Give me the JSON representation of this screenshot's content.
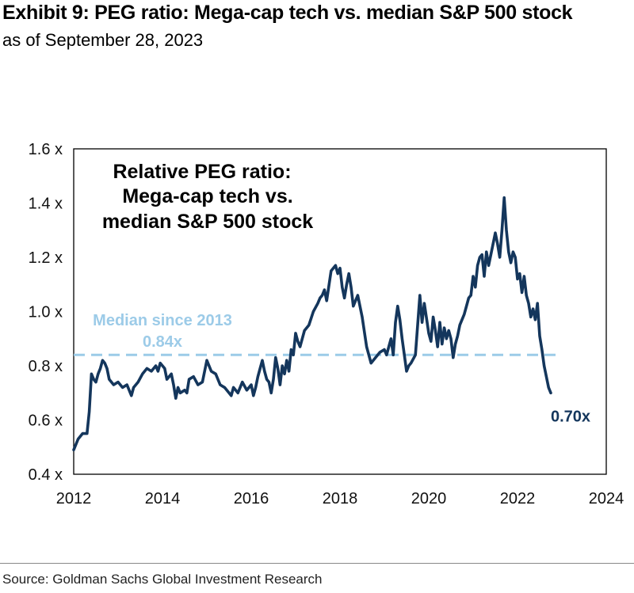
{
  "header": {
    "title": "Exhibit 9: PEG ratio: Mega-cap tech vs. median S&P 500 stock",
    "subtitle": "as of September 28, 2023"
  },
  "footer": {
    "source": "Source: Goldman Sachs Global Investment Research"
  },
  "colors": {
    "series": "#14365c",
    "median": "#9ccbe8",
    "frame": "#000000"
  },
  "chart_data": {
    "type": "line",
    "title_lines": [
      "Relative PEG ratio:",
      "Mega-cap tech vs.",
      "median S&P 500 stock"
    ],
    "xlabel": "",
    "ylabel": "",
    "xlim": [
      2012,
      2024
    ],
    "ylim": [
      0.4,
      1.6
    ],
    "x_ticks": [
      2012,
      2014,
      2016,
      2018,
      2020,
      2022,
      2024
    ],
    "x_tick_labels": [
      "2012",
      "2014",
      "2016",
      "2018",
      "2020",
      "2022",
      "2024"
    ],
    "y_ticks": [
      0.4,
      0.6,
      0.8,
      1.0,
      1.2,
      1.4,
      1.6
    ],
    "y_tick_labels": [
      "0.4 x",
      "0.6 x",
      "0.8 x",
      "1.0 x",
      "1.2 x",
      "1.4 x",
      "1.6 x"
    ],
    "grid": false,
    "median": {
      "value": 0.84,
      "label_line1": "Median since 2013",
      "label_line2": "0.84x"
    },
    "end_label": "0.70x",
    "series": [
      {
        "name": "Relative PEG ratio: Mega-cap tech vs. median S&P 500 stock",
        "x": [
          2012.0,
          2012.1,
          2012.2,
          2012.3,
          2012.35,
          2012.4,
          2012.45,
          2012.5,
          2012.55,
          2012.6,
          2012.65,
          2012.7,
          2012.75,
          2012.8,
          2012.9,
          2013.0,
          2013.1,
          2013.2,
          2013.3,
          2013.35,
          2013.45,
          2013.55,
          2013.65,
          2013.75,
          2013.85,
          2013.9,
          2013.95,
          2014.05,
          2014.1,
          2014.2,
          2014.25,
          2014.3,
          2014.35,
          2014.4,
          2014.5,
          2014.55,
          2014.6,
          2014.7,
          2014.8,
          2014.9,
          2015.0,
          2015.1,
          2015.2,
          2015.3,
          2015.4,
          2015.5,
          2015.55,
          2015.6,
          2015.7,
          2015.8,
          2015.9,
          2016.0,
          2016.05,
          2016.1,
          2016.15,
          2016.2,
          2016.25,
          2016.3,
          2016.35,
          2016.4,
          2016.45,
          2016.5,
          2016.55,
          2016.6,
          2016.65,
          2016.7,
          2016.75,
          2016.8,
          2016.85,
          2016.9,
          2016.95,
          2017.0,
          2017.05,
          2017.1,
          2017.2,
          2017.3,
          2017.4,
          2017.5,
          2017.55,
          2017.6,
          2017.65,
          2017.7,
          2017.8,
          2017.9,
          2017.95,
          2018.0,
          2018.05,
          2018.1,
          2018.15,
          2018.2,
          2018.25,
          2018.3,
          2018.4,
          2018.5,
          2018.6,
          2018.7,
          2018.8,
          2018.9,
          2019.0,
          2019.05,
          2019.1,
          2019.15,
          2019.2,
          2019.25,
          2019.3,
          2019.35,
          2019.4,
          2019.45,
          2019.5,
          2019.55,
          2019.6,
          2019.7,
          2019.8,
          2019.85,
          2019.9,
          2020.0,
          2020.05,
          2020.1,
          2020.15,
          2020.2,
          2020.25,
          2020.3,
          2020.35,
          2020.4,
          2020.45,
          2020.5,
          2020.55,
          2020.6,
          2020.65,
          2020.7,
          2020.8,
          2020.9,
          2020.95,
          2021.0,
          2021.05,
          2021.1,
          2021.15,
          2021.2,
          2021.25,
          2021.3,
          2021.35,
          2021.4,
          2021.45,
          2021.5,
          2021.55,
          2021.6,
          2021.65,
          2021.7,
          2021.75,
          2021.8,
          2021.85,
          2021.9,
          2021.95,
          2022.0,
          2022.05,
          2022.1,
          2022.15,
          2022.2,
          2022.25,
          2022.3,
          2022.35,
          2022.4,
          2022.45,
          2022.5,
          2022.55,
          2022.6,
          2022.65,
          2022.7,
          2022.75
        ],
        "values": [
          0.49,
          0.53,
          0.55,
          0.55,
          0.63,
          0.77,
          0.75,
          0.74,
          0.77,
          0.79,
          0.82,
          0.81,
          0.79,
          0.75,
          0.73,
          0.74,
          0.72,
          0.73,
          0.69,
          0.72,
          0.74,
          0.77,
          0.79,
          0.78,
          0.8,
          0.78,
          0.81,
          0.79,
          0.75,
          0.77,
          0.73,
          0.68,
          0.72,
          0.7,
          0.71,
          0.7,
          0.75,
          0.76,
          0.73,
          0.74,
          0.82,
          0.78,
          0.77,
          0.73,
          0.72,
          0.7,
          0.69,
          0.72,
          0.7,
          0.74,
          0.71,
          0.73,
          0.69,
          0.72,
          0.76,
          0.79,
          0.82,
          0.78,
          0.75,
          0.74,
          0.7,
          0.75,
          0.83,
          0.79,
          0.73,
          0.8,
          0.77,
          0.82,
          0.78,
          0.86,
          0.84,
          0.92,
          0.89,
          0.87,
          0.93,
          0.95,
          1.0,
          1.03,
          1.05,
          1.06,
          1.08,
          1.04,
          1.15,
          1.17,
          1.14,
          1.16,
          1.09,
          1.05,
          1.1,
          1.14,
          1.09,
          1.02,
          1.06,
          0.98,
          0.87,
          0.81,
          0.83,
          0.85,
          0.86,
          0.84,
          0.87,
          0.9,
          0.84,
          0.96,
          1.02,
          0.97,
          0.9,
          0.84,
          0.78,
          0.8,
          0.81,
          0.84,
          1.06,
          0.96,
          1.03,
          0.92,
          0.89,
          0.98,
          0.93,
          0.87,
          0.96,
          0.88,
          0.94,
          0.9,
          0.93,
          0.9,
          0.83,
          0.88,
          0.91,
          0.95,
          0.99,
          1.05,
          1.06,
          1.13,
          1.09,
          1.17,
          1.2,
          1.21,
          1.13,
          1.22,
          1.17,
          1.21,
          1.25,
          1.29,
          1.25,
          1.2,
          1.3,
          1.42,
          1.3,
          1.22,
          1.18,
          1.22,
          1.2,
          1.12,
          1.14,
          1.07,
          1.13,
          1.06,
          1.03,
          0.98,
          1.01,
          0.97,
          1.03,
          0.91,
          0.86,
          0.8,
          0.76,
          0.72,
          0.7
        ]
      }
    ]
  }
}
